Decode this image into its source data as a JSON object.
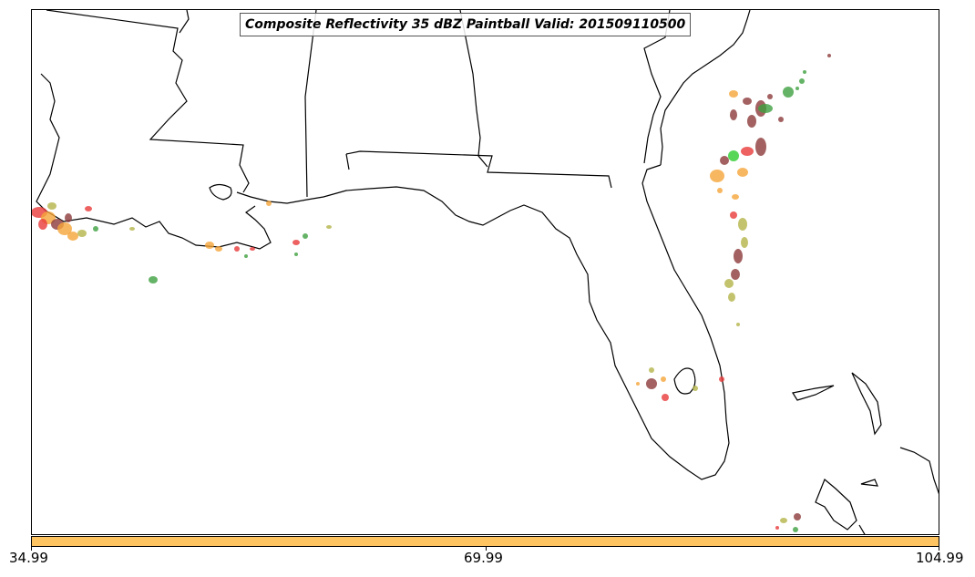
{
  "title": "Composite Reflectivity 35 dBZ Paintball Valid: 201509110500",
  "colorbar": {
    "color": "#fec462",
    "ticks": [
      "34.99",
      "69.99",
      "104.99"
    ]
  },
  "map": {
    "land_line_color": "#000000",
    "background": "#ffffff",
    "paintball_colors": [
      "#e83a3a",
      "#f5a53a",
      "#3fa040",
      "#8c3a3a",
      "#b4b44a",
      "#6e8c3a",
      "#2ecc2e"
    ]
  }
}
